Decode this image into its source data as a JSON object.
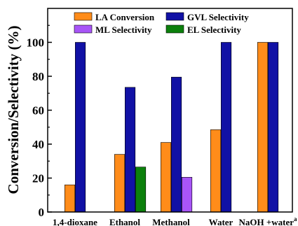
{
  "chart_data": {
    "type": "bar",
    "title": "",
    "xlabel": "",
    "ylabel": "Conversion/Selectivity (%)",
    "ylim": [
      0,
      120
    ],
    "yticks": [
      0,
      20,
      40,
      60,
      80,
      100
    ],
    "grid": false,
    "legend_position": "top",
    "categories": [
      "1,4-dioxane",
      "Ethanol",
      "Methanol",
      "Water",
      "NaOH +water"
    ],
    "category_superscripts": [
      "",
      "",
      "",
      "",
      "a"
    ],
    "series": [
      {
        "name": "LA Conversion",
        "color": "#ff8c1a",
        "values": [
          16,
          34,
          41,
          48.5,
          100
        ]
      },
      {
        "name": "GVL Selectivity",
        "color": "#1111a5",
        "values": [
          100,
          73.5,
          79.5,
          100,
          100
        ]
      },
      {
        "name": "ML Selectivity",
        "color": "#a855f7",
        "values": [
          null,
          null,
          20.5,
          null,
          null
        ]
      },
      {
        "name": "EL Selectivity",
        "color": "#0c800c",
        "values": [
          null,
          26.5,
          null,
          null,
          null
        ]
      }
    ]
  }
}
